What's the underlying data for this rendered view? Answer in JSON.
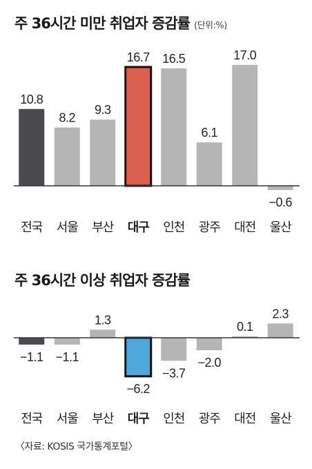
{
  "colors": {
    "default": "#b5b5b5",
    "national": "#4a4a4e",
    "highlight_chart1": "#dd5f4f",
    "highlight_chart2": "#4ea8dc",
    "highlight_border": "#111111",
    "axis": "#333333"
  },
  "source": "〈자료: KOSIS 국가통계포털〉",
  "chart_data": [
    {
      "type": "bar",
      "title": "주 36시간 미만 취업자 증감률",
      "unit": "(단위:%)",
      "categories": [
        "전국",
        "서울",
        "부산",
        "대구",
        "인천",
        "광주",
        "대전",
        "울산"
      ],
      "values": [
        10.8,
        8.2,
        9.3,
        16.7,
        16.5,
        6.1,
        17.0,
        -0.6
      ],
      "value_labels": [
        "10.8",
        "8.2",
        "9.3",
        "16.7",
        "16.5",
        "6.1",
        "17.0",
        "−0.6"
      ],
      "highlight": "대구",
      "ylim": [
        -0.6,
        17.0
      ],
      "legend": "none",
      "grid": false
    },
    {
      "type": "bar",
      "title": "주 36시간 이상 취업자 증감률",
      "categories": [
        "전국",
        "서울",
        "부산",
        "대구",
        "인천",
        "광주",
        "대전",
        "울산"
      ],
      "values": [
        -1.1,
        -1.1,
        1.3,
        -6.2,
        -3.7,
        -2.0,
        0.1,
        2.3
      ],
      "value_labels": [
        "−1.1",
        "−1.1",
        "1.3",
        "−6.2",
        "−3.7",
        "−2.0",
        "0.1",
        "2.3"
      ],
      "highlight": "대구",
      "ylim": [
        -6.2,
        2.3
      ],
      "legend": "none",
      "grid": false
    }
  ]
}
